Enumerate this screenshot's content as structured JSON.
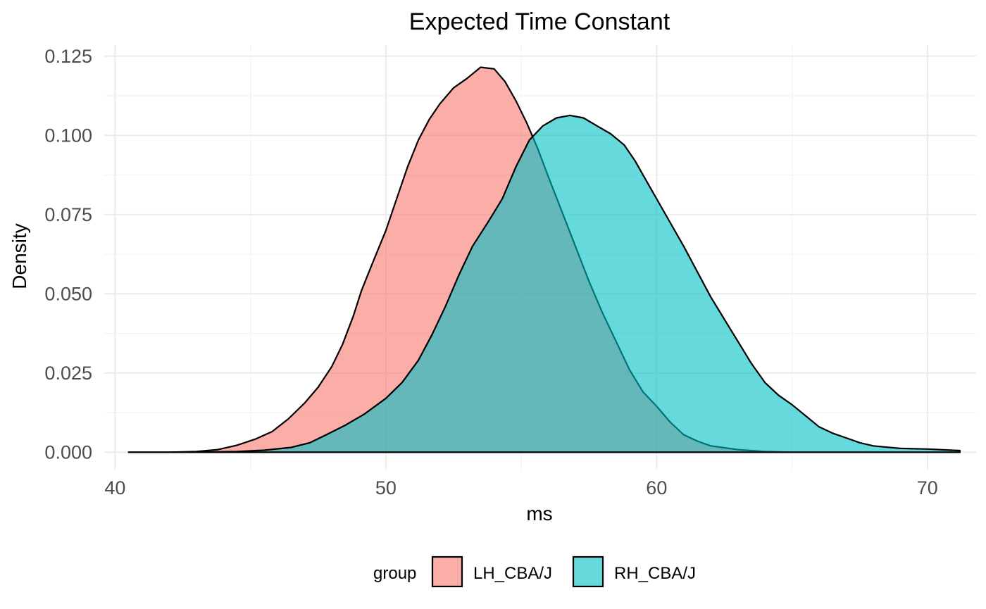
{
  "chart_data": {
    "type": "area",
    "title": "Expected Time Constant",
    "xlabel": "ms",
    "ylabel": "Density",
    "xlim": [
      39.6,
      71.8
    ],
    "ylim": [
      -0.0055,
      0.1285
    ],
    "x_ticks": [
      40,
      50,
      60,
      70
    ],
    "x_tick_labels": [
      "40",
      "50",
      "60",
      "70"
    ],
    "y_ticks": [
      0.0,
      0.025,
      0.05,
      0.075,
      0.1,
      0.125
    ],
    "y_tick_labels": [
      "0.000",
      "0.025",
      "0.050",
      "0.075",
      "0.100",
      "0.125"
    ],
    "grid": true,
    "legend": {
      "title": "group",
      "position": "bottom"
    },
    "series": [
      {
        "name": "LH_CBA/J",
        "color": "#F8766D",
        "points": [
          [
            40.5,
            0.0
          ],
          [
            42.0,
            0.0
          ],
          [
            43.0,
            0.0002
          ],
          [
            43.8,
            0.0008
          ],
          [
            44.5,
            0.0022
          ],
          [
            45.2,
            0.0042
          ],
          [
            45.8,
            0.0065
          ],
          [
            46.4,
            0.0105
          ],
          [
            47.0,
            0.0155
          ],
          [
            47.5,
            0.0205
          ],
          [
            48.0,
            0.027
          ],
          [
            48.4,
            0.034
          ],
          [
            48.8,
            0.043
          ],
          [
            49.1,
            0.051
          ],
          [
            49.5,
            0.0595
          ],
          [
            50.0,
            0.07
          ],
          [
            50.4,
            0.08
          ],
          [
            50.8,
            0.09
          ],
          [
            51.2,
            0.0985
          ],
          [
            51.6,
            0.105
          ],
          [
            52.0,
            0.11
          ],
          [
            52.5,
            0.115
          ],
          [
            53.0,
            0.118
          ],
          [
            53.5,
            0.1215
          ],
          [
            54.0,
            0.121
          ],
          [
            54.4,
            0.117
          ],
          [
            54.8,
            0.111
          ],
          [
            55.2,
            0.104
          ],
          [
            55.6,
            0.096
          ],
          [
            56.0,
            0.087
          ],
          [
            56.5,
            0.076
          ],
          [
            57.0,
            0.065
          ],
          [
            57.5,
            0.054
          ],
          [
            58.0,
            0.044
          ],
          [
            58.5,
            0.035
          ],
          [
            59.0,
            0.026
          ],
          [
            59.5,
            0.019
          ],
          [
            60.0,
            0.0145
          ],
          [
            60.5,
            0.0095
          ],
          [
            61.0,
            0.0055
          ],
          [
            61.5,
            0.0035
          ],
          [
            62.0,
            0.002
          ],
          [
            63.0,
            0.0008
          ],
          [
            64.0,
            0.0002
          ],
          [
            65.0,
            0.0
          ],
          [
            66.5,
            0.0
          ],
          [
            71.2,
            0.0
          ]
        ]
      },
      {
        "name": "RH_CBA/J",
        "color": "#00BFC4",
        "points": [
          [
            40.5,
            0.0
          ],
          [
            43.0,
            0.0
          ],
          [
            44.5,
            0.0002
          ],
          [
            45.5,
            0.0006
          ],
          [
            46.5,
            0.0015
          ],
          [
            47.2,
            0.003
          ],
          [
            47.8,
            0.0055
          ],
          [
            48.5,
            0.0085
          ],
          [
            49.2,
            0.012
          ],
          [
            50.0,
            0.017
          ],
          [
            50.6,
            0.022
          ],
          [
            51.2,
            0.029
          ],
          [
            51.7,
            0.037
          ],
          [
            52.2,
            0.046
          ],
          [
            52.7,
            0.056
          ],
          [
            53.2,
            0.065
          ],
          [
            53.8,
            0.073
          ],
          [
            54.3,
            0.08
          ],
          [
            54.8,
            0.09
          ],
          [
            55.3,
            0.0985
          ],
          [
            55.8,
            0.103
          ],
          [
            56.3,
            0.1055
          ],
          [
            56.8,
            0.1063
          ],
          [
            57.3,
            0.1055
          ],
          [
            57.8,
            0.103
          ],
          [
            58.3,
            0.1005
          ],
          [
            58.8,
            0.097
          ],
          [
            59.2,
            0.092
          ],
          [
            59.6,
            0.086
          ],
          [
            60.0,
            0.08
          ],
          [
            60.5,
            0.0725
          ],
          [
            61.0,
            0.065
          ],
          [
            61.5,
            0.057
          ],
          [
            62.0,
            0.049
          ],
          [
            62.5,
            0.042
          ],
          [
            63.0,
            0.035
          ],
          [
            63.5,
            0.028
          ],
          [
            64.0,
            0.022
          ],
          [
            64.5,
            0.018
          ],
          [
            65.0,
            0.015
          ],
          [
            65.5,
            0.0115
          ],
          [
            66.0,
            0.008
          ],
          [
            66.5,
            0.006
          ],
          [
            67.0,
            0.0045
          ],
          [
            67.5,
            0.003
          ],
          [
            68.0,
            0.002
          ],
          [
            69.0,
            0.0012
          ],
          [
            70.0,
            0.001
          ],
          [
            71.2,
            0.0005
          ]
        ]
      }
    ]
  }
}
